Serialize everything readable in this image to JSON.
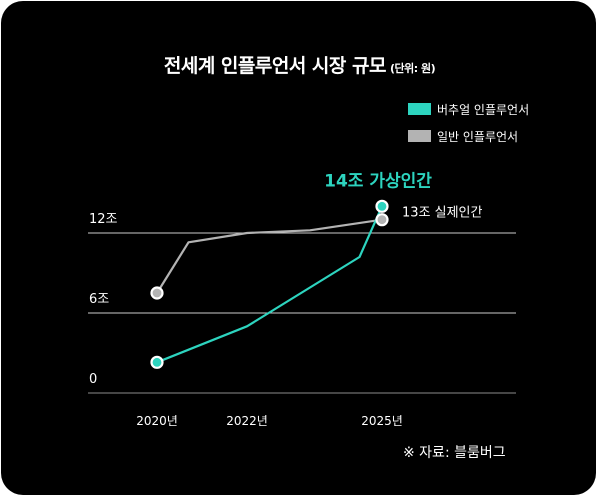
{
  "title": "전세계 인플루언서 시장 규모",
  "unit": "(단위: 원)",
  "legend": [
    {
      "label": "버추얼 인플루언서",
      "color": "#2dd4bf"
    },
    {
      "label": "일반 인플루언서",
      "color": "#b3b3b3"
    }
  ],
  "source": "※ 자료: 블룸버그",
  "chart_data": {
    "type": "line",
    "ylim": [
      0,
      16
    ],
    "y_ticks": [
      {
        "value": 0,
        "label": "0"
      },
      {
        "value": 6,
        "label": "6조"
      },
      {
        "value": 12,
        "label": "12조"
      }
    ],
    "x_ticks": [
      {
        "value": 2020,
        "label": "2020년"
      },
      {
        "value": 2022,
        "label": "2022년"
      },
      {
        "value": 2025,
        "label": "2025년"
      }
    ],
    "series": [
      {
        "name": "버추얼 인플루언서",
        "color": "#2dd4bf",
        "points": [
          [
            2020,
            2.3
          ],
          [
            2022,
            5.0
          ],
          [
            2024.5,
            10.2
          ],
          [
            2025,
            14.0
          ]
        ],
        "end_label": "14조 가상인간"
      },
      {
        "name": "일반 인플루언서",
        "color": "#b3b3b3",
        "points": [
          [
            2020,
            7.5
          ],
          [
            2020.7,
            11.3
          ],
          [
            2022,
            12.0
          ],
          [
            2023.4,
            12.2
          ],
          [
            2025,
            13.0
          ]
        ],
        "end_label": "13조 실제인간"
      }
    ]
  }
}
